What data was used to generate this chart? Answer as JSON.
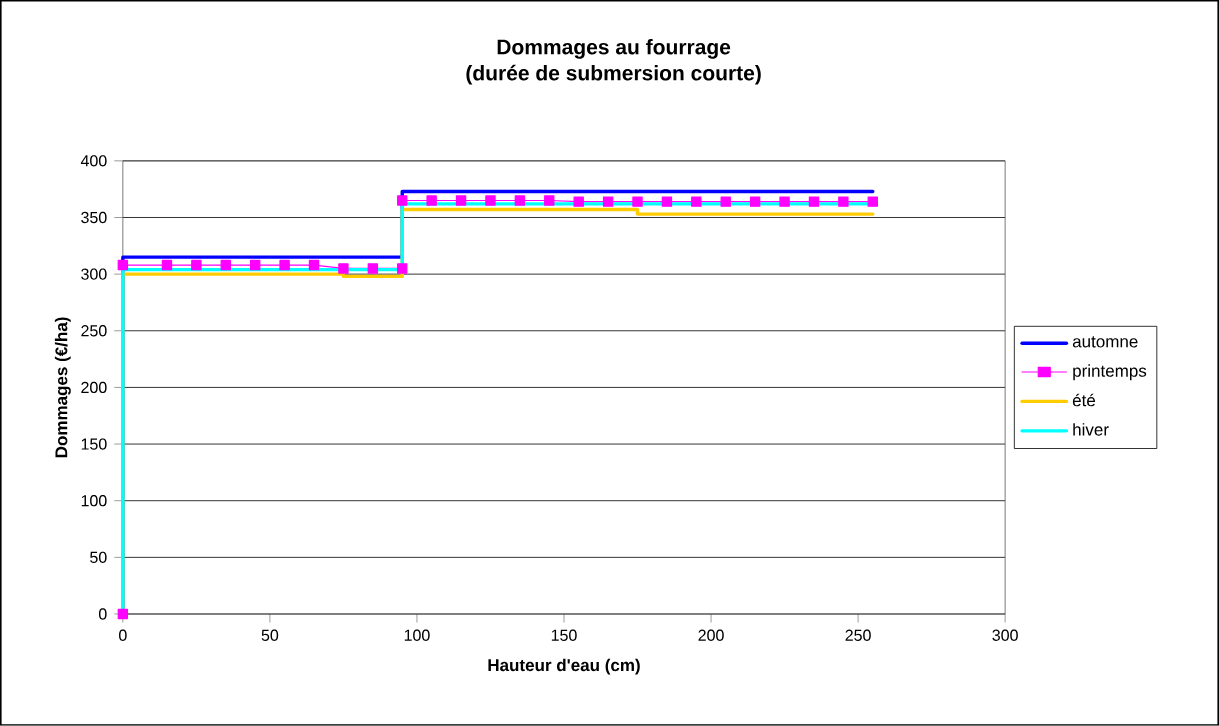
{
  "chart_data": {
    "type": "line",
    "title": "Dommages au fourrage",
    "subtitle": "(durée de submersion courte)",
    "xlabel": "Hauteur d'eau (cm)",
    "ylabel": "Dommages (€/ha)",
    "series": [
      {
        "name": "automne",
        "color": "#0000ff",
        "marker": "none",
        "x": [
          0,
          0,
          95,
          95,
          255
        ],
        "values": [
          0,
          315,
          315,
          373,
          373
        ]
      },
      {
        "name": "printemps",
        "color": "#ff00ff",
        "marker": "square",
        "x": [
          0,
          0,
          15,
          25,
          35,
          45,
          55,
          65,
          75,
          85,
          95,
          95,
          105,
          115,
          125,
          135,
          145,
          155,
          165,
          175,
          185,
          195,
          205,
          215,
          225,
          235,
          245,
          255
        ],
        "values": [
          0,
          308,
          308,
          308,
          308,
          308,
          308,
          308,
          305,
          305,
          305,
          365,
          365,
          365,
          365,
          365,
          365,
          364,
          364,
          364,
          364,
          364,
          364,
          364,
          364,
          364,
          364,
          364
        ]
      },
      {
        "name": "été",
        "color": "#ffcc00",
        "marker": "none",
        "x": [
          0,
          0,
          75,
          75,
          95,
          95,
          175,
          175,
          255
        ],
        "values": [
          0,
          300,
          300,
          298,
          298,
          357,
          357,
          353,
          353
        ]
      },
      {
        "name": "hiver",
        "color": "#00ffff",
        "marker": "none",
        "x": [
          0,
          0,
          95,
          95,
          255
        ],
        "values": [
          0,
          304,
          304,
          362,
          362
        ]
      }
    ],
    "xlim": [
      0,
      300
    ],
    "xticks": [
      0,
      50,
      100,
      150,
      200,
      250,
      300
    ],
    "ylim": [
      0,
      400
    ],
    "yticks": [
      0,
      50,
      100,
      150,
      200,
      250,
      300,
      350,
      400
    ],
    "grid": "y",
    "legend": "right"
  }
}
